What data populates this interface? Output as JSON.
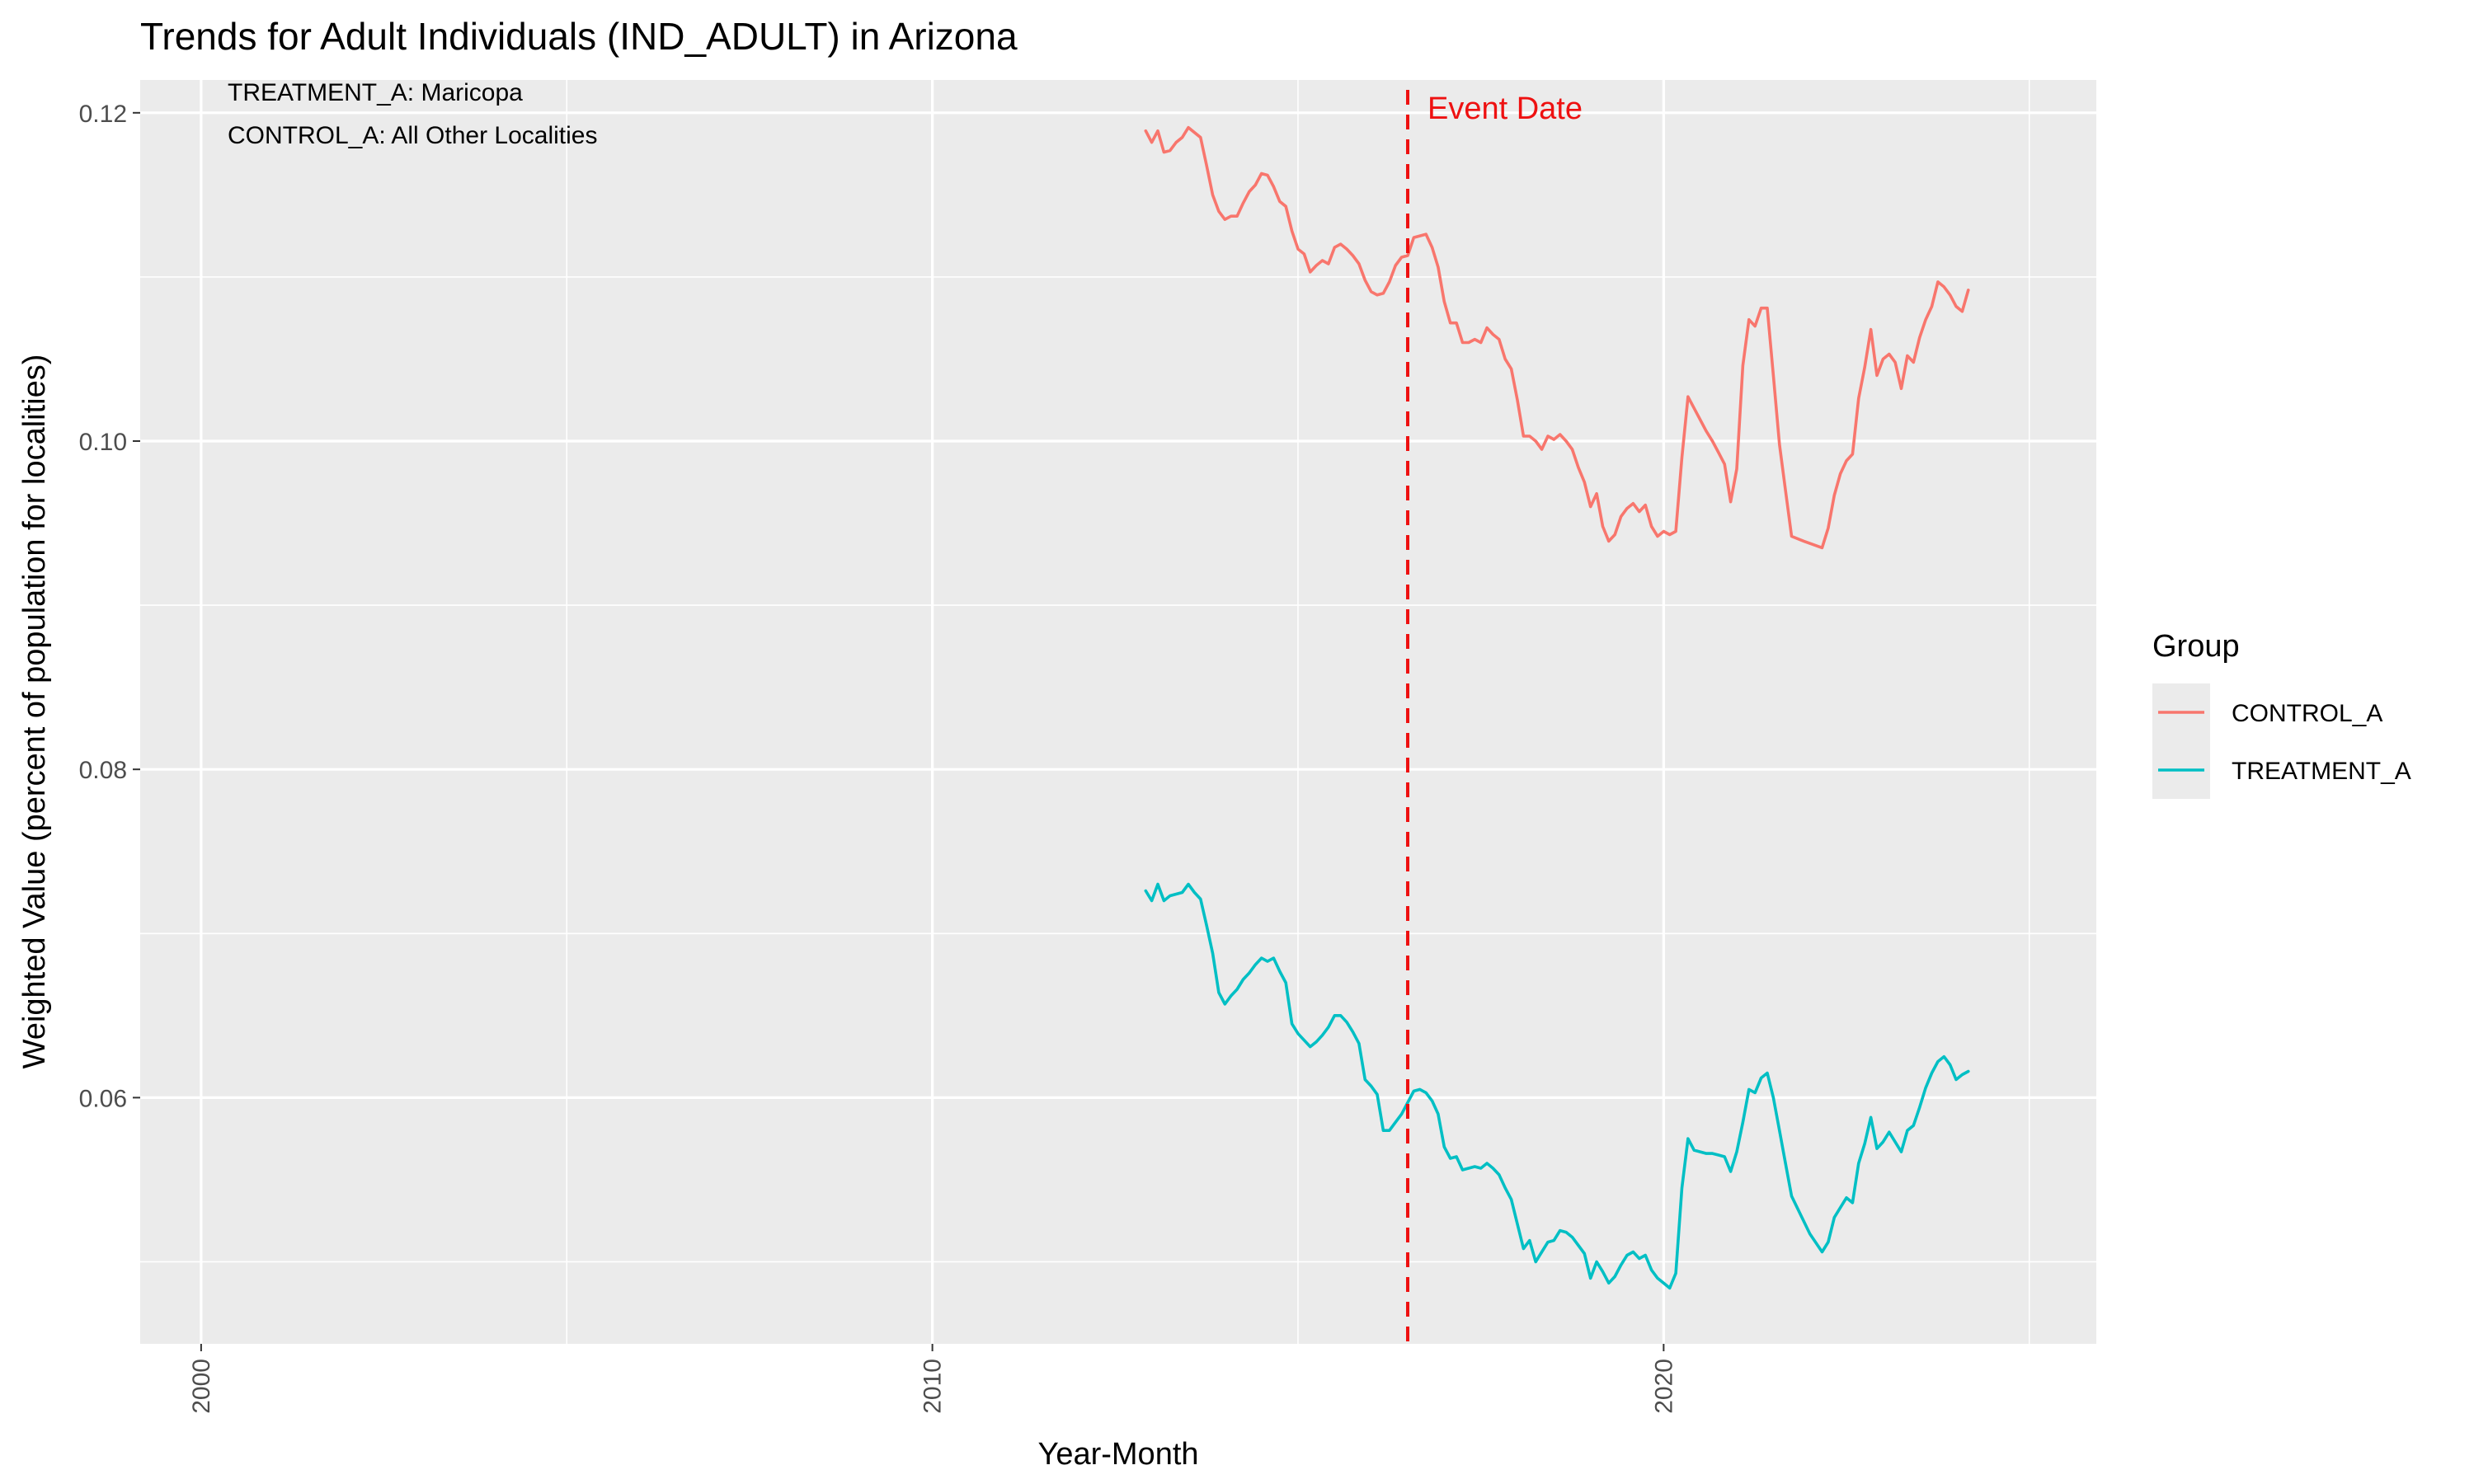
{
  "chart_data": {
    "type": "line",
    "title": "Trends for Adult Individuals (IND_ADULT) in Arizona",
    "xlabel": "Year-Month",
    "ylabel": "Weighted Value (percent of population for localities)",
    "xlim": [
      "1999-03",
      "2025-12"
    ],
    "ylim": [
      0.045,
      0.122
    ],
    "x_ticks": [
      "2000",
      "2010",
      "2020"
    ],
    "y_ticks": [
      "0.06",
      "0.08",
      "0.10",
      "0.12"
    ],
    "grid": true,
    "annotations": [
      "TREATMENT_A: Maricopa",
      "CONTROL_A: All Other Localities"
    ],
    "event": {
      "label": "Event Date",
      "x": "2016-07",
      "color": "#ee1111"
    },
    "legend": {
      "title": "Group",
      "position": "right"
    },
    "series": [
      {
        "name": "CONTROL_A",
        "color": "#F8766D",
        "points": [
          [
            "2012-12",
            0.1189
          ],
          [
            "2013-01",
            0.1182
          ],
          [
            "2013-02",
            0.1189
          ],
          [
            "2013-03",
            0.1176
          ],
          [
            "2013-04",
            0.1177
          ],
          [
            "2013-05",
            0.1182
          ],
          [
            "2013-06",
            0.1185
          ],
          [
            "2013-07",
            0.1191
          ],
          [
            "2013-08",
            0.1188
          ],
          [
            "2013-09",
            0.1185
          ],
          [
            "2013-10",
            0.1168
          ],
          [
            "2013-11",
            0.115
          ],
          [
            "2013-12",
            0.114
          ],
          [
            "2014-01",
            0.1135
          ],
          [
            "2014-02",
            0.1137
          ],
          [
            "2014-03",
            0.1137
          ],
          [
            "2014-04",
            0.1145
          ],
          [
            "2014-05",
            0.1152
          ],
          [
            "2014-06",
            0.1156
          ],
          [
            "2014-07",
            0.1163
          ],
          [
            "2014-08",
            0.1162
          ],
          [
            "2014-09",
            0.1155
          ],
          [
            "2014-10",
            0.1146
          ],
          [
            "2014-11",
            0.1143
          ],
          [
            "2014-12",
            0.1128
          ],
          [
            "2015-01",
            0.1117
          ],
          [
            "2015-02",
            0.1114
          ],
          [
            "2015-03",
            0.1103
          ],
          [
            "2015-04",
            0.1107
          ],
          [
            "2015-05",
            0.111
          ],
          [
            "2015-06",
            0.1108
          ],
          [
            "2015-07",
            0.1118
          ],
          [
            "2015-08",
            0.112
          ],
          [
            "2015-09",
            0.1117
          ],
          [
            "2015-10",
            0.1113
          ],
          [
            "2015-11",
            0.1108
          ],
          [
            "2015-12",
            0.1098
          ],
          [
            "2016-01",
            0.1091
          ],
          [
            "2016-02",
            0.1089
          ],
          [
            "2016-03",
            0.109
          ],
          [
            "2016-04",
            0.1097
          ],
          [
            "2016-05",
            0.1107
          ],
          [
            "2016-06",
            0.1112
          ],
          [
            "2016-07",
            0.1113
          ],
          [
            "2016-08",
            0.1124
          ],
          [
            "2016-09",
            0.1125
          ],
          [
            "2016-10",
            0.1126
          ],
          [
            "2016-11",
            0.1118
          ],
          [
            "2016-12",
            0.1106
          ],
          [
            "2017-01",
            0.1085
          ],
          [
            "2017-02",
            0.1072
          ],
          [
            "2017-03",
            0.1072
          ],
          [
            "2017-04",
            0.106
          ],
          [
            "2017-05",
            0.106
          ],
          [
            "2017-06",
            0.1062
          ],
          [
            "2017-07",
            0.106
          ],
          [
            "2017-08",
            0.1069
          ],
          [
            "2017-09",
            0.1065
          ],
          [
            "2017-10",
            0.1062
          ],
          [
            "2017-11",
            0.105
          ],
          [
            "2017-12",
            0.1044
          ],
          [
            "2018-01",
            0.1025
          ],
          [
            "2018-02",
            0.1003
          ],
          [
            "2018-03",
            0.1003
          ],
          [
            "2018-04",
            0.1
          ],
          [
            "2018-05",
            0.0995
          ],
          [
            "2018-06",
            0.1003
          ],
          [
            "2018-07",
            0.1001
          ],
          [
            "2018-08",
            0.1004
          ],
          [
            "2018-09",
            0.1
          ],
          [
            "2018-10",
            0.0995
          ],
          [
            "2018-11",
            0.0984
          ],
          [
            "2018-12",
            0.0975
          ],
          [
            "2019-01",
            0.096
          ],
          [
            "2019-02",
            0.0968
          ],
          [
            "2019-03",
            0.0948
          ],
          [
            "2019-04",
            0.0939
          ],
          [
            "2019-05",
            0.0943
          ],
          [
            "2019-06",
            0.0954
          ],
          [
            "2019-07",
            0.0959
          ],
          [
            "2019-08",
            0.0962
          ],
          [
            "2019-09",
            0.0957
          ],
          [
            "2019-10",
            0.0961
          ],
          [
            "2019-11",
            0.0948
          ],
          [
            "2019-12",
            0.0942
          ],
          [
            "2020-01",
            0.0945
          ],
          [
            "2020-02",
            0.0943
          ],
          [
            "2020-03",
            0.0945
          ],
          [
            "2020-04",
            0.099
          ],
          [
            "2020-05",
            0.1027
          ],
          [
            "2020-06",
            0.102
          ],
          [
            "2020-07",
            0.1013
          ],
          [
            "2020-08",
            0.1006
          ],
          [
            "2020-09",
            0.1
          ],
          [
            "2020-10",
            0.0993
          ],
          [
            "2020-11",
            0.0986
          ],
          [
            "2020-12",
            0.0963
          ],
          [
            "2021-01",
            0.0983
          ],
          [
            "2021-02",
            0.1046
          ],
          [
            "2021-03",
            0.1074
          ],
          [
            "2021-04",
            0.107
          ],
          [
            "2021-05",
            0.1081
          ],
          [
            "2021-06",
            0.1081
          ],
          [
            "2021-07",
            0.104
          ],
          [
            "2021-08",
            0.0998
          ],
          [
            "2021-09",
            0.097
          ],
          [
            "2021-10",
            0.0942
          ],
          [
            "2021-12",
            0.0939
          ],
          [
            "2022-03",
            0.0935
          ],
          [
            "2022-04",
            0.0947
          ],
          [
            "2022-05",
            0.0967
          ],
          [
            "2022-06",
            0.098
          ],
          [
            "2022-07",
            0.0988
          ],
          [
            "2022-08",
            0.0992
          ],
          [
            "2022-09",
            0.1026
          ],
          [
            "2022-10",
            0.1045
          ],
          [
            "2022-11",
            0.1068
          ],
          [
            "2022-12",
            0.104
          ],
          [
            "2023-01",
            0.105
          ],
          [
            "2023-02",
            0.1053
          ],
          [
            "2023-03",
            0.1048
          ],
          [
            "2023-04",
            0.1032
          ],
          [
            "2023-05",
            0.1052
          ],
          [
            "2023-06",
            0.1048
          ],
          [
            "2023-07",
            0.1063
          ],
          [
            "2023-08",
            0.1074
          ],
          [
            "2023-09",
            0.1082
          ],
          [
            "2023-10",
            0.1097
          ],
          [
            "2023-11",
            0.1094
          ],
          [
            "2023-12",
            0.1089
          ],
          [
            "2024-01",
            0.1082
          ],
          [
            "2024-02",
            0.1079
          ],
          [
            "2024-03",
            0.1092
          ]
        ]
      },
      {
        "name": "TREATMENT_A",
        "color": "#00BFC4",
        "points": [
          [
            "2012-12",
            0.0726
          ],
          [
            "2013-01",
            0.072
          ],
          [
            "2013-02",
            0.073
          ],
          [
            "2013-03",
            0.072
          ],
          [
            "2013-04",
            0.0723
          ],
          [
            "2013-05",
            0.0724
          ],
          [
            "2013-06",
            0.0725
          ],
          [
            "2013-07",
            0.073
          ],
          [
            "2013-08",
            0.0725
          ],
          [
            "2013-09",
            0.0721
          ],
          [
            "2013-10",
            0.0705
          ],
          [
            "2013-11",
            0.0688
          ],
          [
            "2013-12",
            0.0664
          ],
          [
            "2014-01",
            0.0657
          ],
          [
            "2014-02",
            0.0662
          ],
          [
            "2014-03",
            0.0666
          ],
          [
            "2014-04",
            0.0672
          ],
          [
            "2014-05",
            0.0676
          ],
          [
            "2014-06",
            0.0681
          ],
          [
            "2014-07",
            0.0685
          ],
          [
            "2014-08",
            0.0683
          ],
          [
            "2014-09",
            0.0685
          ],
          [
            "2014-10",
            0.0677
          ],
          [
            "2014-11",
            0.067
          ],
          [
            "2014-12",
            0.0645
          ],
          [
            "2015-01",
            0.0639
          ],
          [
            "2015-02",
            0.0635
          ],
          [
            "2015-03",
            0.0631
          ],
          [
            "2015-04",
            0.0634
          ],
          [
            "2015-05",
            0.0638
          ],
          [
            "2015-06",
            0.0643
          ],
          [
            "2015-07",
            0.065
          ],
          [
            "2015-08",
            0.065
          ],
          [
            "2015-09",
            0.0646
          ],
          [
            "2015-10",
            0.064
          ],
          [
            "2015-11",
            0.0633
          ],
          [
            "2015-12",
            0.0611
          ],
          [
            "2016-01",
            0.0607
          ],
          [
            "2016-02",
            0.0602
          ],
          [
            "2016-03",
            0.058
          ],
          [
            "2016-04",
            0.058
          ],
          [
            "2016-05",
            0.0585
          ],
          [
            "2016-06",
            0.059
          ],
          [
            "2016-07",
            0.0597
          ],
          [
            "2016-08",
            0.0604
          ],
          [
            "2016-09",
            0.0605
          ],
          [
            "2016-10",
            0.0603
          ],
          [
            "2016-11",
            0.0598
          ],
          [
            "2016-12",
            0.059
          ],
          [
            "2017-01",
            0.057
          ],
          [
            "2017-02",
            0.0563
          ],
          [
            "2017-03",
            0.0564
          ],
          [
            "2017-04",
            0.0556
          ],
          [
            "2017-05",
            0.0557
          ],
          [
            "2017-06",
            0.0558
          ],
          [
            "2017-07",
            0.0557
          ],
          [
            "2017-08",
            0.056
          ],
          [
            "2017-09",
            0.0557
          ],
          [
            "2017-10",
            0.0553
          ],
          [
            "2017-11",
            0.0545
          ],
          [
            "2017-12",
            0.0538
          ],
          [
            "2018-01",
            0.0523
          ],
          [
            "2018-02",
            0.0508
          ],
          [
            "2018-03",
            0.0513
          ],
          [
            "2018-04",
            0.05
          ],
          [
            "2018-05",
            0.0506
          ],
          [
            "2018-06",
            0.0512
          ],
          [
            "2018-07",
            0.0513
          ],
          [
            "2018-08",
            0.0519
          ],
          [
            "2018-09",
            0.0518
          ],
          [
            "2018-10",
            0.0515
          ],
          [
            "2018-11",
            0.051
          ],
          [
            "2018-12",
            0.0505
          ],
          [
            "2019-01",
            0.049
          ],
          [
            "2019-02",
            0.05
          ],
          [
            "2019-03",
            0.0494
          ],
          [
            "2019-04",
            0.0487
          ],
          [
            "2019-05",
            0.0491
          ],
          [
            "2019-06",
            0.0498
          ],
          [
            "2019-07",
            0.0504
          ],
          [
            "2019-08",
            0.0506
          ],
          [
            "2019-09",
            0.0502
          ],
          [
            "2019-10",
            0.0504
          ],
          [
            "2019-11",
            0.0495
          ],
          [
            "2019-12",
            0.049
          ],
          [
            "2020-01",
            0.0487
          ],
          [
            "2020-02",
            0.0484
          ],
          [
            "2020-03",
            0.0493
          ],
          [
            "2020-04",
            0.0545
          ],
          [
            "2020-05",
            0.0575
          ],
          [
            "2020-06",
            0.0568
          ],
          [
            "2020-07",
            0.0567
          ],
          [
            "2020-08",
            0.0566
          ],
          [
            "2020-09",
            0.0566
          ],
          [
            "2020-10",
            0.0565
          ],
          [
            "2020-11",
            0.0564
          ],
          [
            "2020-12",
            0.0555
          ],
          [
            "2021-01",
            0.0567
          ],
          [
            "2021-02",
            0.0585
          ],
          [
            "2021-03",
            0.0605
          ],
          [
            "2021-04",
            0.0603
          ],
          [
            "2021-05",
            0.0612
          ],
          [
            "2021-06",
            0.0615
          ],
          [
            "2021-07",
            0.06
          ],
          [
            "2021-08",
            0.058
          ],
          [
            "2021-09",
            0.056
          ],
          [
            "2021-10",
            0.054
          ],
          [
            "2022-01",
            0.0517
          ],
          [
            "2022-03",
            0.0506
          ],
          [
            "2022-04",
            0.0512
          ],
          [
            "2022-05",
            0.0527
          ],
          [
            "2022-06",
            0.0533
          ],
          [
            "2022-07",
            0.0539
          ],
          [
            "2022-08",
            0.0536
          ],
          [
            "2022-09",
            0.056
          ],
          [
            "2022-10",
            0.0572
          ],
          [
            "2022-11",
            0.0588
          ],
          [
            "2022-12",
            0.0569
          ],
          [
            "2023-01",
            0.0573
          ],
          [
            "2023-02",
            0.0579
          ],
          [
            "2023-03",
            0.0573
          ],
          [
            "2023-04",
            0.0567
          ],
          [
            "2023-05",
            0.058
          ],
          [
            "2023-06",
            0.0583
          ],
          [
            "2023-07",
            0.0594
          ],
          [
            "2023-08",
            0.0606
          ],
          [
            "2023-09",
            0.0615
          ],
          [
            "2023-10",
            0.0622
          ],
          [
            "2023-11",
            0.0625
          ],
          [
            "2023-12",
            0.062
          ],
          [
            "2024-01",
            0.0611
          ],
          [
            "2024-02",
            0.0614
          ],
          [
            "2024-03",
            0.0616
          ]
        ]
      }
    ]
  }
}
